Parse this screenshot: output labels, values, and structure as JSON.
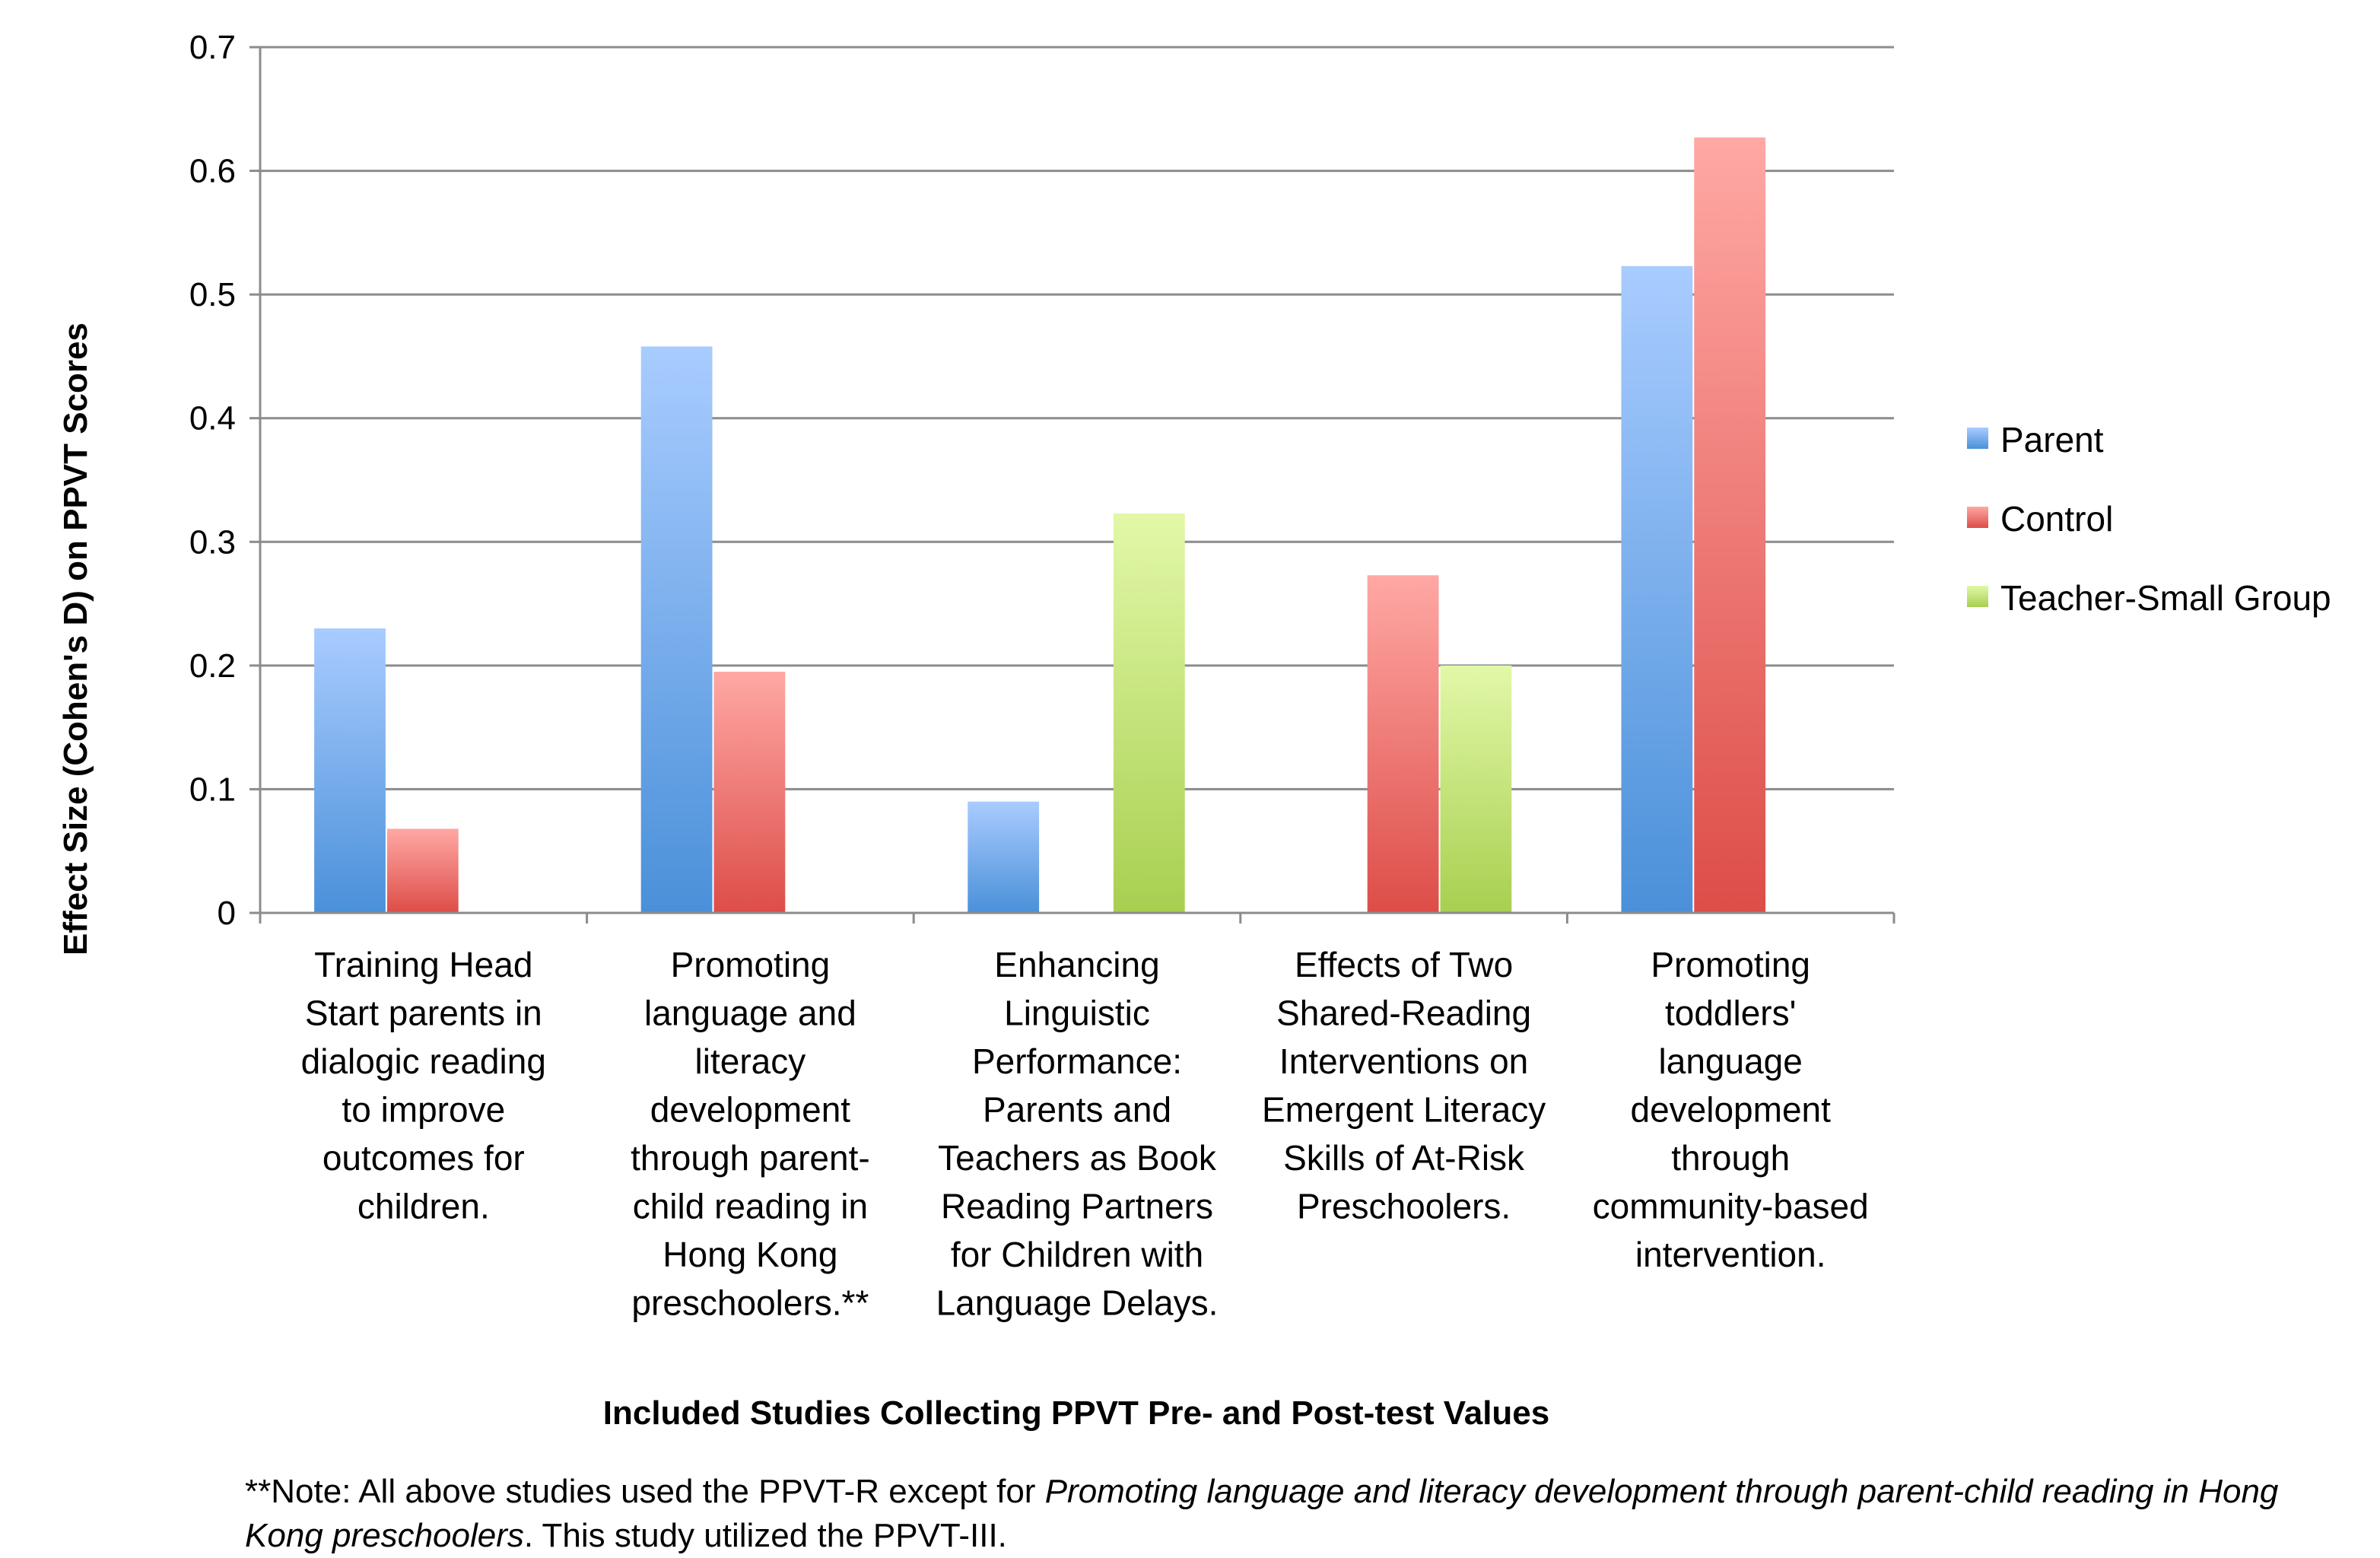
{
  "chart_data": {
    "type": "bar",
    "ylabel": "Effect Size (Cohen's D) on PPVT Scores",
    "xlabel": "Included Studies Collecting PPVT Pre- and Post-test Values",
    "ylim": [
      0,
      0.7
    ],
    "yticks": [
      "0",
      "0.1",
      "0.2",
      "0.3",
      "0.4",
      "0.5",
      "0.6",
      "0.7"
    ],
    "grid": true,
    "legend_position": "right",
    "categories": [
      [
        "Training Head",
        "Start parents in",
        "dialogic reading",
        "to improve",
        "outcomes for",
        "children."
      ],
      [
        "Promoting",
        "language and",
        "literacy",
        "development",
        "through parent-",
        "child reading in",
        "Hong Kong",
        "preschoolers.**"
      ],
      [
        "Enhancing",
        "Linguistic",
        "Performance:",
        "Parents and",
        "Teachers as Book",
        "Reading Partners",
        "for Children with",
        "Language Delays."
      ],
      [
        "Effects of Two",
        "Shared-Reading",
        "Interventions on",
        "Emergent Literacy",
        "Skills of At-Risk",
        "Preschoolers."
      ],
      [
        "Promoting",
        "toddlers'",
        "language",
        "development",
        "through",
        "community-based",
        "intervention."
      ]
    ],
    "series": [
      {
        "name": "Parent",
        "color": "#4a90d9",
        "color_light": "#a9ccff",
        "values": [
          0.23,
          0.458,
          0.09,
          null,
          0.523
        ]
      },
      {
        "name": "Control",
        "color": "#dd4d48",
        "color_light": "#ffa8a4",
        "values": [
          0.068,
          0.195,
          null,
          0.273,
          0.627
        ]
      },
      {
        "name": "Teacher-Small Group",
        "color": "#a8cf50",
        "color_light": "#e2f8a8",
        "values": [
          null,
          null,
          0.323,
          0.2,
          null
        ]
      }
    ]
  },
  "note": {
    "prefix": "**Note: All above studies used the PPVT-R except for ",
    "italic": "Promoting language and literacy development through parent-child reading in Hong Kong preschoolers",
    "suffix": ". This study utilized the PPVT-III."
  }
}
